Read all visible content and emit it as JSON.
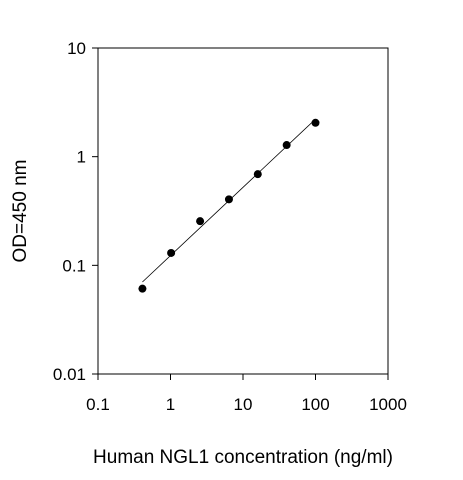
{
  "chart_data": {
    "type": "scatter",
    "xlabel": "Human NGL1 concentration (ng/ml)",
    "ylabel": "OD=450 nm",
    "x_scale": "log",
    "y_scale": "log",
    "xlim": [
      0.1,
      1000
    ],
    "ylim": [
      0.01,
      10
    ],
    "x_ticks": [
      "0.1",
      "1",
      "10",
      "100",
      "1000"
    ],
    "y_ticks": [
      "0.01",
      "0.1",
      "1",
      "10"
    ],
    "grid": false,
    "series": [
      {
        "x": [
          0.41,
          1.02,
          2.56,
          6.4,
          16,
          40,
          100
        ],
        "y": [
          0.061,
          0.13,
          0.255,
          0.405,
          0.69,
          1.28,
          2.05
        ],
        "marker": "filled-circle",
        "fit_line": true
      }
    ],
    "colors": {
      "marker": "#000000",
      "fit_line": "#000000",
      "axes": "#000000"
    }
  }
}
